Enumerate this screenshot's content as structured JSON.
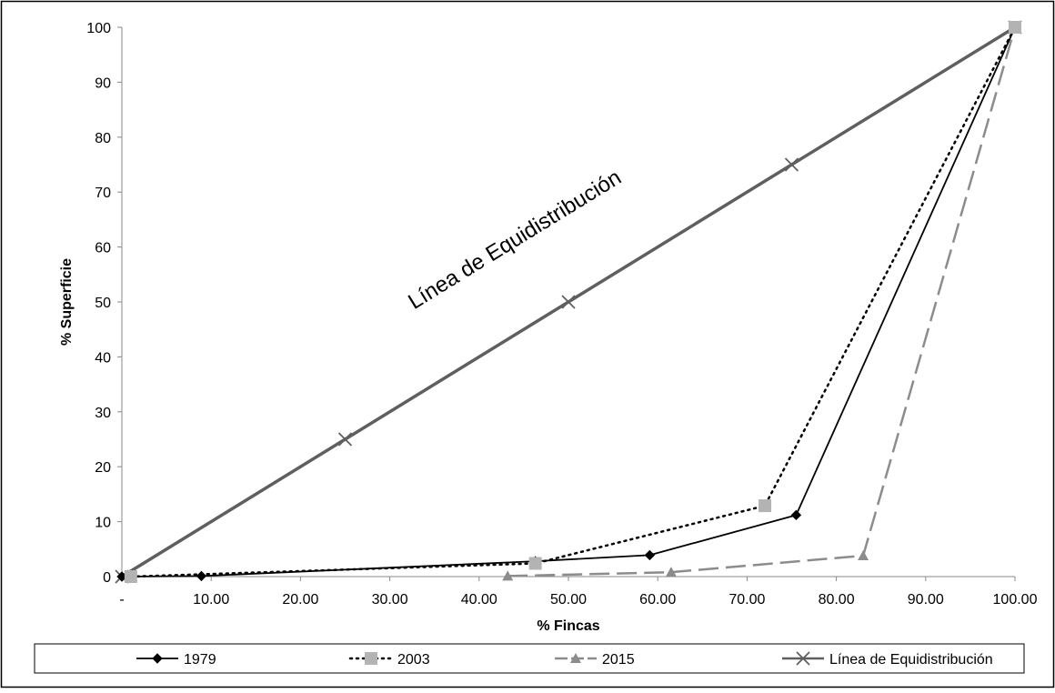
{
  "chart_data": {
    "type": "line",
    "title": "",
    "xlabel": "% Fincas",
    "ylabel": "% Superficie",
    "xlim": [
      0,
      100
    ],
    "ylim": [
      0,
      100
    ],
    "x_ticks": [
      "-",
      "10.00",
      "20.00",
      "30.00",
      "40.00",
      "50.00",
      "60.00",
      "70.00",
      "80.00",
      "90.00",
      "100.00"
    ],
    "y_ticks": [
      "0",
      "10",
      "20",
      "30",
      "40",
      "50",
      "60",
      "70",
      "80",
      "90",
      "100"
    ],
    "grid": false,
    "legend_position": "bottom",
    "annotation": "Línea de Equidistribución",
    "series": [
      {
        "name": "1979",
        "color": "#000000",
        "line_style": "solid",
        "marker": "diamond",
        "points": [
          [
            0,
            0
          ],
          [
            8.9,
            0.1
          ],
          [
            46.3,
            2.8
          ],
          [
            59.1,
            3.9
          ],
          [
            75.5,
            11.2
          ],
          [
            100,
            100
          ]
        ]
      },
      {
        "name": "2003",
        "color": "#000000",
        "marker_color": "#b3b3b3",
        "line_style": "dotted",
        "marker": "square",
        "points": [
          [
            1.0,
            0
          ],
          [
            46.3,
            2.4
          ],
          [
            72.0,
            12.9
          ],
          [
            100,
            100
          ]
        ]
      },
      {
        "name": "2015",
        "color": "#8c8c8c",
        "line_style": "dashed",
        "marker": "triangle",
        "points": [
          [
            43.2,
            0.1
          ],
          [
            61.5,
            0.8
          ],
          [
            83.0,
            3.8
          ],
          [
            100,
            100
          ]
        ]
      },
      {
        "name": "Línea de Equidistribución",
        "color": "#5f5f5f",
        "line_style": "solid-thick",
        "marker": "cross",
        "points": [
          [
            0,
            0
          ],
          [
            25,
            25
          ],
          [
            50,
            50
          ],
          [
            75,
            75
          ],
          [
            100,
            100
          ]
        ]
      }
    ]
  }
}
